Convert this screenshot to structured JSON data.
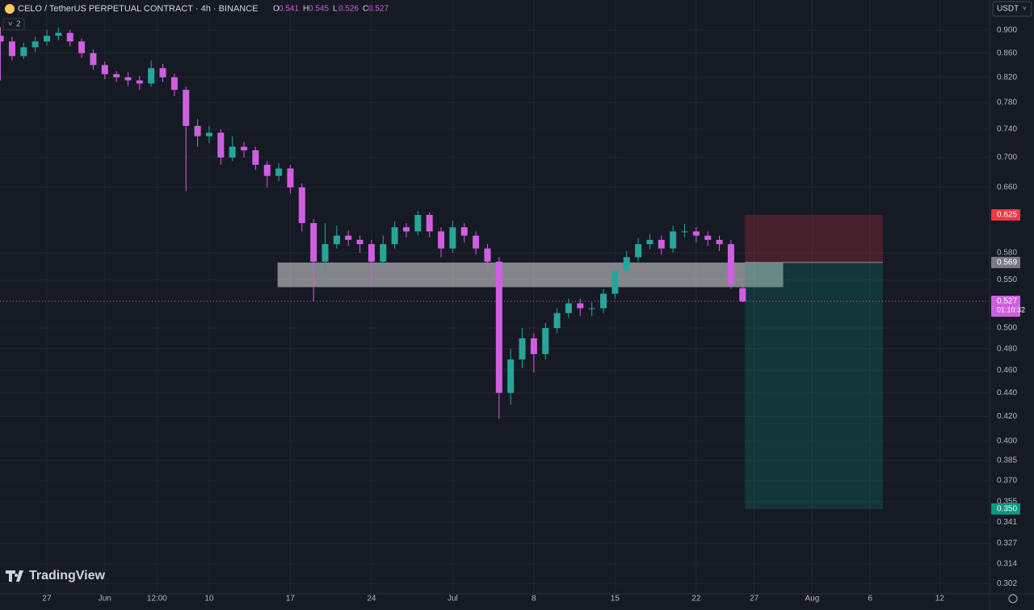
{
  "chart_data": {
    "type": "candlestick",
    "symbol": "CELO / TetherUS PERPETUAL CONTRACT · 4h · BINANCE",
    "ohlc_legend": [
      {
        "key": "O",
        "value": 0.541
      },
      {
        "key": "H",
        "value": 0.545
      },
      {
        "key": "L",
        "value": 0.526
      },
      {
        "key": "C",
        "value": 0.527
      }
    ],
    "indicators_count": "2",
    "currency": "USDT",
    "brand": "TradingView",
    "log_scale": true,
    "grid": true,
    "up_color": "#26a69a",
    "down_color": "#cf5fe0",
    "x": [
      -4,
      -3,
      -2,
      -1,
      0,
      1,
      2,
      3,
      4,
      5,
      6,
      7,
      8,
      9,
      10,
      11,
      12,
      13,
      14,
      15,
      16,
      17,
      18,
      19,
      20,
      21,
      22,
      23,
      24,
      25,
      26,
      27,
      28,
      29,
      30,
      31,
      32,
      33,
      34,
      35,
      36,
      37,
      38,
      39,
      40,
      41,
      42,
      43,
      44,
      45,
      46,
      47,
      48,
      49,
      50,
      51,
      52,
      53,
      54,
      55,
      56,
      57,
      58,
      59,
      60
    ],
    "open": [
      0.89,
      0.88,
      0.855,
      0.87,
      0.88,
      0.89,
      0.895,
      0.88,
      0.86,
      0.84,
      0.825,
      0.82,
      0.815,
      0.81,
      0.835,
      0.82,
      0.8,
      0.745,
      0.73,
      0.735,
      0.7,
      0.715,
      0.71,
      0.69,
      0.675,
      0.685,
      0.66,
      0.615,
      0.57,
      0.59,
      0.6,
      0.595,
      0.59,
      0.57,
      0.59,
      0.61,
      0.605,
      0.625,
      0.605,
      0.585,
      0.61,
      0.6,
      0.585,
      0.57,
      0.44,
      0.47,
      0.49,
      0.475,
      0.5,
      0.515,
      0.525,
      0.52,
      0.52,
      0.535,
      0.56,
      0.575,
      0.59,
      0.595,
      0.585,
      0.605,
      0.605,
      0.6,
      0.595,
      0.59,
      0.541
    ],
    "high": [
      0.905,
      0.888,
      0.878,
      0.888,
      0.9,
      0.905,
      0.9,
      0.885,
      0.866,
      0.846,
      0.83,
      0.828,
      0.822,
      0.848,
      0.842,
      0.826,
      0.805,
      0.755,
      0.745,
      0.74,
      0.73,
      0.722,
      0.715,
      0.695,
      0.692,
      0.69,
      0.665,
      0.62,
      0.615,
      0.612,
      0.606,
      0.6,
      0.595,
      0.6,
      0.617,
      0.615,
      0.63,
      0.628,
      0.61,
      0.618,
      0.615,
      0.605,
      0.59,
      0.575,
      0.48,
      0.5,
      0.495,
      0.505,
      0.52,
      0.53,
      0.53,
      0.526,
      0.54,
      0.565,
      0.582,
      0.597,
      0.602,
      0.6,
      0.612,
      0.614,
      0.61,
      0.605,
      0.6,
      0.595,
      0.545
    ],
    "low": [
      0.815,
      0.848,
      0.85,
      0.862,
      0.873,
      0.882,
      0.872,
      0.852,
      0.832,
      0.817,
      0.812,
      0.806,
      0.8,
      0.805,
      0.812,
      0.79,
      0.655,
      0.715,
      0.72,
      0.69,
      0.695,
      0.7,
      0.683,
      0.66,
      0.668,
      0.652,
      0.605,
      0.527,
      0.555,
      0.585,
      0.588,
      0.58,
      0.545,
      0.565,
      0.585,
      0.598,
      0.6,
      0.598,
      0.575,
      0.58,
      0.592,
      0.578,
      0.56,
      0.418,
      0.43,
      0.462,
      0.458,
      0.47,
      0.495,
      0.51,
      0.512,
      0.512,
      0.515,
      0.53,
      0.555,
      0.57,
      0.584,
      0.578,
      0.58,
      0.598,
      0.592,
      0.588,
      0.582,
      0.54,
      0.526
    ],
    "close": [
      0.88,
      0.855,
      0.87,
      0.88,
      0.89,
      0.895,
      0.88,
      0.86,
      0.84,
      0.825,
      0.82,
      0.815,
      0.81,
      0.835,
      0.82,
      0.8,
      0.745,
      0.73,
      0.735,
      0.7,
      0.715,
      0.71,
      0.69,
      0.675,
      0.685,
      0.66,
      0.615,
      0.57,
      0.59,
      0.6,
      0.595,
      0.59,
      0.57,
      0.59,
      0.61,
      0.605,
      0.625,
      0.605,
      0.585,
      0.61,
      0.6,
      0.585,
      0.57,
      0.44,
      0.47,
      0.49,
      0.475,
      0.5,
      0.515,
      0.525,
      0.52,
      0.52,
      0.535,
      0.56,
      0.575,
      0.59,
      0.595,
      0.585,
      0.605,
      0.605,
      0.6,
      0.595,
      0.59,
      0.545,
      0.527
    ],
    "xlim": [
      -4.04,
      81.3
    ],
    "xticks": [
      {
        "value": 0,
        "label": "27"
      },
      {
        "value": 5,
        "label": "Jun"
      },
      {
        "value": 9.5,
        "label": "12:00"
      },
      {
        "value": 14,
        "label": "10"
      },
      {
        "value": 21,
        "label": "17"
      },
      {
        "value": 28,
        "label": "24"
      },
      {
        "value": 35,
        "label": "Jul"
      },
      {
        "value": 42,
        "label": "8"
      },
      {
        "value": 49,
        "label": "15"
      },
      {
        "value": 56,
        "label": "22"
      },
      {
        "value": 61,
        "label": "27"
      },
      {
        "value": 66,
        "label": "Aug"
      },
      {
        "value": 71,
        "label": "6"
      },
      {
        "value": 77,
        "label": "12"
      }
    ],
    "ylim": [
      0.296,
      0.955
    ],
    "yticks": [
      {
        "value": 0.9,
        "label": "0.900"
      },
      {
        "value": 0.86,
        "label": "0.860"
      },
      {
        "value": 0.82,
        "label": "0.820"
      },
      {
        "value": 0.78,
        "label": "0.780"
      },
      {
        "value": 0.74,
        "label": "0.740"
      },
      {
        "value": 0.7,
        "label": "0.700"
      },
      {
        "value": 0.66,
        "label": "0.660"
      },
      {
        "value": 0.58,
        "label": "0.580"
      },
      {
        "value": 0.55,
        "label": "0.550"
      },
      {
        "value": 0.5,
        "label": "0.500"
      },
      {
        "value": 0.48,
        "label": "0.480"
      },
      {
        "value": 0.46,
        "label": "0.460"
      },
      {
        "value": 0.44,
        "label": "0.440"
      },
      {
        "value": 0.42,
        "label": "0.420"
      },
      {
        "value": 0.4,
        "label": "0.400"
      },
      {
        "value": 0.385,
        "label": "0.385"
      },
      {
        "value": 0.37,
        "label": "0.370"
      },
      {
        "value": 0.355,
        "label": "0.355"
      },
      {
        "value": 0.341,
        "label": "0.341"
      },
      {
        "value": 0.327,
        "label": "0.327"
      },
      {
        "value": 0.314,
        "label": "0.314"
      },
      {
        "value": 0.302,
        "label": "0.302"
      }
    ],
    "zone": {
      "x": [
        19.9,
        63.5
      ],
      "y": [
        0.542,
        0.569
      ]
    },
    "position": {
      "x": [
        60.2,
        72.1
      ],
      "entry": {
        "value": 0.569,
        "label": "0.569"
      },
      "stop": {
        "value": 0.625,
        "label": "0.625"
      },
      "target": {
        "value": 0.35,
        "label": "0.350"
      }
    },
    "current_price": {
      "value": 0.527,
      "label": "0.527",
      "countdown": "01:10:32"
    }
  }
}
